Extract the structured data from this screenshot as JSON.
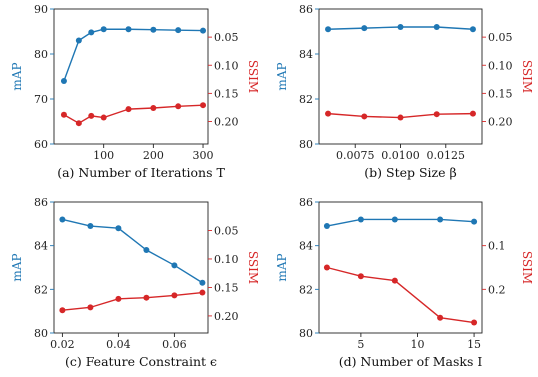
{
  "colors": {
    "map": "#1f77b4",
    "ssim": "#d62728",
    "axis": "#222222"
  },
  "chart_data": [
    {
      "type": "line",
      "caption": "(a) Number of Iterations T",
      "x": [
        20,
        50,
        75,
        100,
        150,
        200,
        250,
        300
      ],
      "xlim": [
        0,
        310
      ],
      "xticks": [
        100,
        200,
        300
      ],
      "left_axis": {
        "label": "mAP",
        "lim": [
          60,
          90
        ],
        "ticks": [
          60,
          70,
          80,
          90
        ]
      },
      "right_axis": {
        "label": "SSIM",
        "lim": [
          0.0,
          0.24
        ],
        "inverted": true,
        "ticks": [
          0.05,
          0.1,
          0.15,
          0.2
        ]
      },
      "series": [
        {
          "name": "mAP",
          "axis": "left",
          "values": [
            74.0,
            83.0,
            84.8,
            85.5,
            85.5,
            85.4,
            85.3,
            85.2
          ]
        },
        {
          "name": "SSIM",
          "axis": "right",
          "values": [
            0.188,
            0.203,
            0.19,
            0.193,
            0.178,
            0.176,
            0.173,
            0.171
          ]
        }
      ]
    },
    {
      "type": "line",
      "caption": "(b) Step Size β",
      "x": [
        0.006,
        0.008,
        0.01,
        0.012,
        0.014
      ],
      "xlim": [
        0.0055,
        0.0145
      ],
      "xticks": [
        0.0075,
        0.01,
        0.0125
      ],
      "left_axis": {
        "label": "mAP",
        "lim": [
          80,
          86
        ],
        "ticks": [
          80,
          82,
          84,
          86
        ]
      },
      "right_axis": {
        "label": "SSIM",
        "lim": [
          0.0,
          0.24
        ],
        "inverted": true,
        "ticks": [
          0.05,
          0.1,
          0.15,
          0.2
        ]
      },
      "series": [
        {
          "name": "mAP",
          "axis": "left",
          "values": [
            85.1,
            85.15,
            85.2,
            85.2,
            85.1
          ]
        },
        {
          "name": "SSIM",
          "axis": "right",
          "values": [
            0.186,
            0.191,
            0.193,
            0.187,
            0.186
          ]
        }
      ]
    },
    {
      "type": "line",
      "caption": "(c) Feature Constraint ϵ",
      "x": [
        0.02,
        0.03,
        0.04,
        0.05,
        0.06,
        0.07
      ],
      "xlim": [
        0.017,
        0.072
      ],
      "xticks": [
        0.02,
        0.04,
        0.06
      ],
      "left_axis": {
        "label": "mAP",
        "lim": [
          80,
          86
        ],
        "ticks": [
          80,
          82,
          84,
          86
        ]
      },
      "right_axis": {
        "label": "SSIM",
        "lim": [
          0.0,
          0.23
        ],
        "inverted": true,
        "ticks": [
          0.05,
          0.1,
          0.15,
          0.2
        ]
      },
      "series": [
        {
          "name": "mAP",
          "axis": "left",
          "values": [
            85.2,
            84.9,
            84.8,
            83.8,
            83.1,
            82.3
          ]
        },
        {
          "name": "SSIM",
          "axis": "right",
          "values": [
            0.19,
            0.185,
            0.17,
            0.168,
            0.164,
            0.159
          ]
        }
      ]
    },
    {
      "type": "line",
      "caption": "(d) Number of Masks I",
      "x": [
        2,
        5,
        8,
        12,
        15
      ],
      "xlim": [
        1.3,
        15.7
      ],
      "xticks": [
        5,
        10,
        15
      ],
      "left_axis": {
        "label": "mAP",
        "lim": [
          80,
          86
        ],
        "ticks": [
          80,
          82,
          84,
          86
        ]
      },
      "right_axis": {
        "label": "SSIM",
        "lim": [
          0.0,
          0.3
        ],
        "inverted": true,
        "ticks": [
          0.1,
          0.2
        ]
      },
      "series": [
        {
          "name": "mAP",
          "axis": "left",
          "values": [
            84.9,
            85.2,
            85.2,
            85.2,
            85.1
          ]
        },
        {
          "name": "SSIM",
          "axis": "right",
          "values": [
            0.15,
            0.17,
            0.18,
            0.265,
            0.276
          ]
        }
      ]
    }
  ]
}
